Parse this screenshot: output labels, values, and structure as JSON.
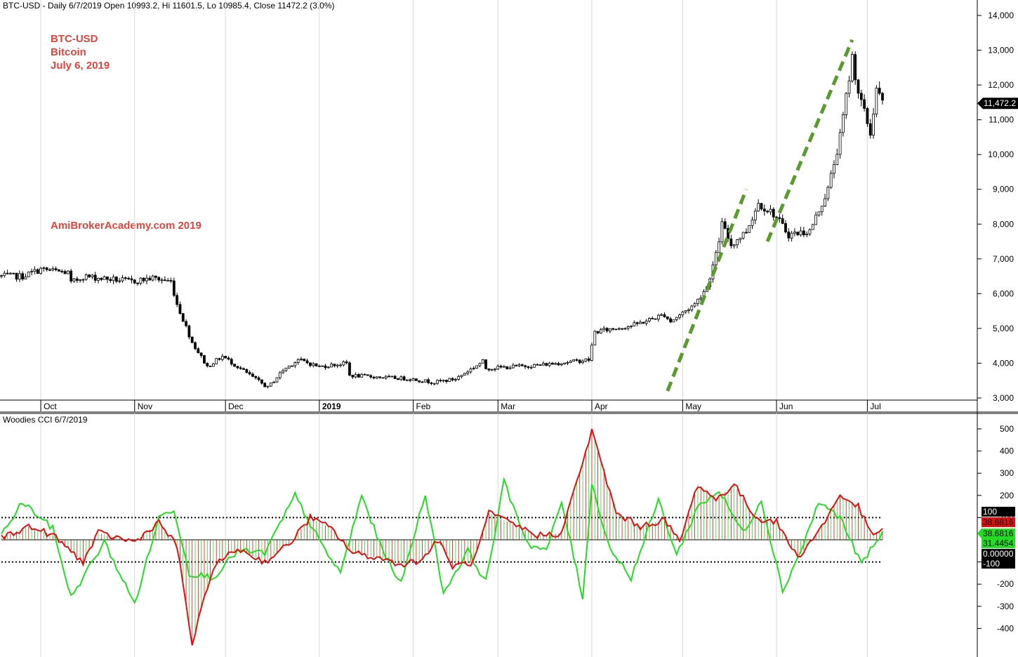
{
  "colors": {
    "background": "#ffffff",
    "candle": "#000000",
    "trendline": "#5a9a2e",
    "cci_red": "#e01010",
    "cci_green": "#22dd22",
    "annotation": "#e0443c"
  },
  "price_pane": {
    "header": "BTC-USD - Daily 6/7/2019 Open 10993.2, Hi 11601.5, Lo 10985.4, Close 11472.2 (3.0%)",
    "annotation_lines": [
      "BTC-USD",
      "Bitcoin",
      "July 6, 2019"
    ],
    "watermark": "AmiBrokerAcademy.com  2019",
    "last_price_label": "11,472.2",
    "y_ticks": [
      "14,000",
      "13,000",
      "12,000",
      "11,000",
      "10,000",
      "9,000",
      "8,000",
      "7,000",
      "6,000",
      "5,000",
      "4,000",
      "3,000"
    ],
    "x_ticks": [
      "Oct",
      "Nov",
      "Dec",
      "2019",
      "Feb",
      "Mar",
      "Apr",
      "May",
      "Jun",
      "Jul"
    ]
  },
  "cci_pane": {
    "header": "Woodies CCI   6/7/2019",
    "y_ticks": [
      "500",
      "400",
      "300",
      "200",
      "100",
      "-100",
      "-200",
      "-300",
      "-400"
    ],
    "value_labels": [
      "100",
      "38.6816",
      "38.6816",
      "31.4454",
      "0.00000",
      "-100"
    ]
  },
  "chart_data": [
    {
      "type": "candlestick",
      "title": "BTC-USD - Daily 6/7/2019 Open 10993.2, Hi 11601.5, Lo 10985.4, Close 11472.2 (3.0%)",
      "ylim": [
        3000,
        14000
      ],
      "x_range": [
        "2018-09-18",
        "2019-07-06"
      ],
      "price_path": [
        [
          "2018-09-18",
          6500
        ],
        [
          "2018-09-25",
          6500
        ],
        [
          "2018-10-01",
          6700
        ],
        [
          "2018-10-10",
          6600
        ],
        [
          "2018-10-11",
          6300
        ],
        [
          "2018-10-15",
          6500
        ],
        [
          "2018-10-31",
          6350
        ],
        [
          "2018-11-07",
          6450
        ],
        [
          "2018-11-13",
          6350
        ],
        [
          "2018-11-15",
          5700
        ],
        [
          "2018-11-20",
          4600
        ],
        [
          "2018-11-25",
          3900
        ],
        [
          "2018-11-30",
          4200
        ],
        [
          "2018-12-05",
          3900
        ],
        [
          "2018-12-10",
          3600
        ],
        [
          "2018-12-15",
          3300
        ],
        [
          "2018-12-20",
          3800
        ],
        [
          "2018-12-25",
          4100
        ],
        [
          "2019-01-01",
          3900
        ],
        [
          "2019-01-10",
          4000
        ],
        [
          "2019-01-11",
          3650
        ],
        [
          "2019-01-31",
          3550
        ],
        [
          "2019-02-08",
          3450
        ],
        [
          "2019-02-15",
          3550
        ],
        [
          "2019-02-24",
          4050
        ],
        [
          "2019-02-25",
          3850
        ],
        [
          "2019-03-15",
          3950
        ],
        [
          "2019-03-31",
          4100
        ],
        [
          "2019-04-02",
          4900
        ],
        [
          "2019-04-15",
          5100
        ],
        [
          "2019-04-25",
          5400
        ],
        [
          "2019-04-27",
          5200
        ],
        [
          "2019-05-05",
          5700
        ],
        [
          "2019-05-09",
          6200
        ],
        [
          "2019-05-12",
          7100
        ],
        [
          "2019-05-14",
          8000
        ],
        [
          "2019-05-17",
          7400
        ],
        [
          "2019-05-22",
          7800
        ],
        [
          "2019-05-26",
          8600
        ],
        [
          "2019-05-31",
          8300
        ],
        [
          "2019-06-05",
          7700
        ],
        [
          "2019-06-12",
          7800
        ],
        [
          "2019-06-18",
          9000
        ],
        [
          "2019-06-22",
          10500
        ],
        [
          "2019-06-26",
          12800
        ],
        [
          "2019-06-28",
          11800
        ],
        [
          "2019-07-02",
          10600
        ],
        [
          "2019-07-04",
          11900
        ],
        [
          "2019-07-06",
          11472.2
        ]
      ],
      "trendlines": [
        {
          "from": [
            "2019-04-26",
            3200
          ],
          "to": [
            "2019-05-22",
            9000
          ]
        },
        {
          "from": [
            "2019-05-29",
            7500
          ],
          "to": [
            "2019-06-26",
            13300
          ]
        }
      ],
      "last_value": 11472.2
    },
    {
      "type": "line",
      "title": "Woodies CCI   6/7/2019",
      "ylim": [
        -450,
        520
      ],
      "reference_lines": [
        100,
        0,
        -100
      ],
      "series": [
        {
          "color": "#e01010",
          "style": "line+histogram",
          "points": [
            [
              "2018-09-18",
              10
            ],
            [
              "2018-09-27",
              60
            ],
            [
              "2018-10-05",
              20
            ],
            [
              "2018-10-15",
              -100
            ],
            [
              "2018-10-20",
              30
            ],
            [
              "2018-11-01",
              -10
            ],
            [
              "2018-11-09",
              80
            ],
            [
              "2018-11-15",
              -30
            ],
            [
              "2018-11-20",
              -470
            ],
            [
              "2018-11-27",
              -120
            ],
            [
              "2018-12-05",
              -40
            ],
            [
              "2018-12-14",
              -100
            ],
            [
              "2018-12-22",
              -20
            ],
            [
              "2018-12-29",
              100
            ],
            [
              "2019-01-05",
              50
            ],
            [
              "2019-01-12",
              -60
            ],
            [
              "2019-01-20",
              -80
            ],
            [
              "2019-01-28",
              -110
            ],
            [
              "2019-02-04",
              -90
            ],
            [
              "2019-02-09",
              0
            ],
            [
              "2019-02-14",
              -120
            ],
            [
              "2019-02-21",
              -100
            ],
            [
              "2019-02-26",
              120
            ],
            [
              "2019-03-06",
              70
            ],
            [
              "2019-03-14",
              20
            ],
            [
              "2019-03-22",
              30
            ],
            [
              "2019-04-01",
              490
            ],
            [
              "2019-04-09",
              120
            ],
            [
              "2019-04-17",
              60
            ],
            [
              "2019-04-25",
              90
            ],
            [
              "2019-04-30",
              -10
            ],
            [
              "2019-05-06",
              250
            ],
            [
              "2019-05-12",
              180
            ],
            [
              "2019-05-18",
              250
            ],
            [
              "2019-05-25",
              100
            ],
            [
              "2019-06-01",
              80
            ],
            [
              "2019-06-08",
              -80
            ],
            [
              "2019-06-15",
              40
            ],
            [
              "2019-06-22",
              200
            ],
            [
              "2019-06-28",
              150
            ],
            [
              "2019-07-02",
              30
            ],
            [
              "2019-07-06",
              38.6816
            ]
          ]
        },
        {
          "color": "#22dd22",
          "style": "line",
          "points": [
            [
              "2018-09-18",
              20
            ],
            [
              "2018-09-25",
              170
            ],
            [
              "2018-10-05",
              50
            ],
            [
              "2018-10-11",
              -260
            ],
            [
              "2018-10-22",
              -10
            ],
            [
              "2018-11-01",
              -290
            ],
            [
              "2018-11-09",
              100
            ],
            [
              "2018-11-14",
              140
            ],
            [
              "2018-11-19",
              -150
            ],
            [
              "2018-11-27",
              -170
            ],
            [
              "2018-12-05",
              -50
            ],
            [
              "2018-12-14",
              -60
            ],
            [
              "2018-12-24",
              200
            ],
            [
              "2019-01-02",
              -30
            ],
            [
              "2019-01-08",
              -150
            ],
            [
              "2019-01-15",
              200
            ],
            [
              "2019-01-21",
              -20
            ],
            [
              "2019-01-28",
              -200
            ],
            [
              "2019-02-05",
              210
            ],
            [
              "2019-02-11",
              -240
            ],
            [
              "2019-02-19",
              -50
            ],
            [
              "2019-02-25",
              -190
            ],
            [
              "2019-03-03",
              260
            ],
            [
              "2019-03-11",
              -20
            ],
            [
              "2019-03-17",
              -50
            ],
            [
              "2019-03-22",
              170
            ],
            [
              "2019-03-29",
              -260
            ],
            [
              "2019-04-01",
              250
            ],
            [
              "2019-04-07",
              -40
            ],
            [
              "2019-04-14",
              -170
            ],
            [
              "2019-04-23",
              180
            ],
            [
              "2019-04-29",
              -70
            ],
            [
              "2019-05-06",
              150
            ],
            [
              "2019-05-13",
              220
            ],
            [
              "2019-05-21",
              30
            ],
            [
              "2019-05-27",
              180
            ],
            [
              "2019-06-03",
              -230
            ],
            [
              "2019-06-09",
              -50
            ],
            [
              "2019-06-15",
              170
            ],
            [
              "2019-06-22",
              100
            ],
            [
              "2019-06-29",
              -110
            ],
            [
              "2019-07-06",
              31.4454
            ]
          ]
        }
      ],
      "last_values": [
        38.6816,
        31.4454
      ]
    }
  ]
}
